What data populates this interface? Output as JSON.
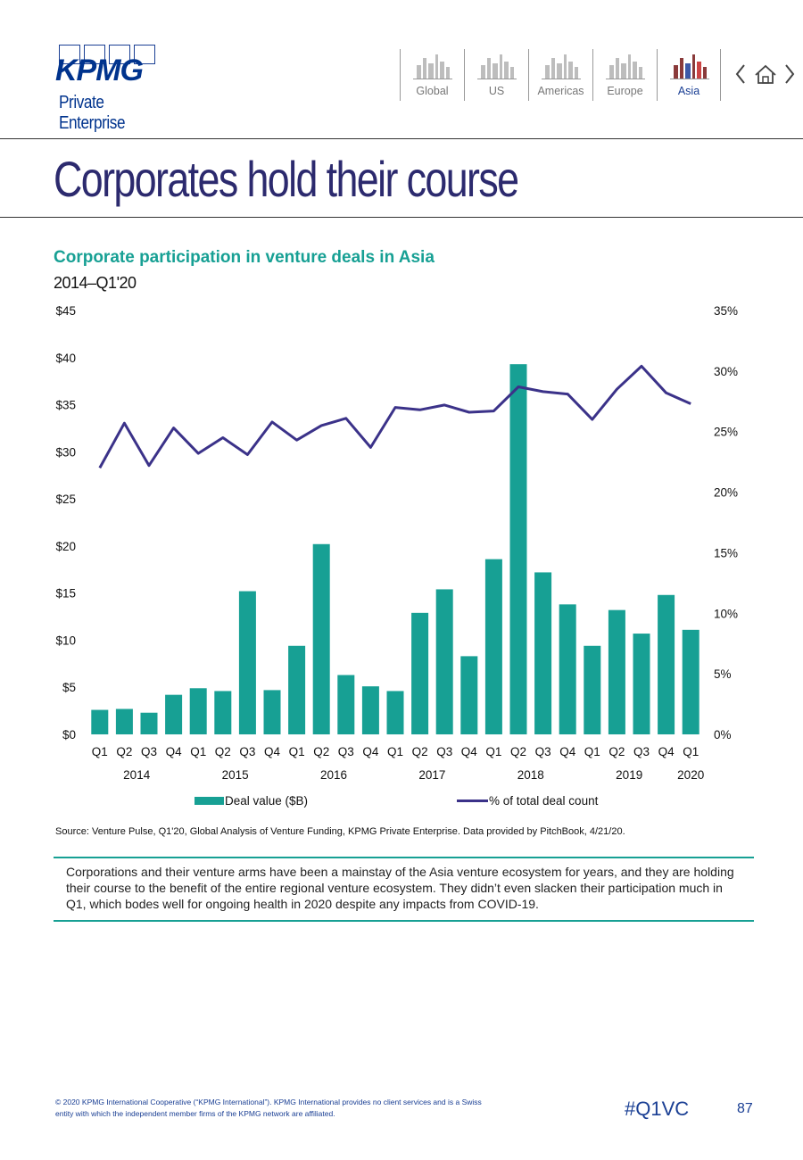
{
  "header": {
    "logo_word": "KPMG",
    "logo_sub": "Private Enterprise",
    "nav_tabs": [
      {
        "label": "Global",
        "active": false
      },
      {
        "label": "US",
        "active": false
      },
      {
        "label": "Americas",
        "active": false
      },
      {
        "label": "Europe",
        "active": false
      },
      {
        "label": "Asia",
        "active": true
      }
    ],
    "nav_icons": [
      "chevron-left-icon",
      "home-icon",
      "chevron-right-icon"
    ]
  },
  "page": {
    "title": "Corporates hold their course",
    "source": "Source: Venture Pulse, Q1'20, Global Analysis of Venture Funding, KPMG Private Enterprise. Data provided by PitchBook, 4/21/20.",
    "callout": "Corporations and their venture arms have been a mainstay of the Asia venture ecosystem for years, and they are holding their course to the benefit of the entire regional venture ecosystem. They didn’t even slacken their participation much in Q1, which bodes well for ongoing health in 2020 despite any impacts from COVID-19.",
    "footer_legal": "© 2020 KPMG International Cooperative (“KPMG International”). KPMG International provides no client services and is a Swiss entity with which the independent member firms of the KPMG network are affiliated.",
    "hashtag": "#Q1VC",
    "page_number": "87"
  },
  "chart_data": {
    "type": "bar",
    "title": "Corporate participation in venture deals in Asia",
    "subtitle": "2014–Q1'20",
    "categories": [
      "Q1",
      "Q2",
      "Q3",
      "Q4",
      "Q1",
      "Q2",
      "Q3",
      "Q4",
      "Q1",
      "Q2",
      "Q3",
      "Q4",
      "Q1",
      "Q2",
      "Q3",
      "Q4",
      "Q1",
      "Q2",
      "Q3",
      "Q4",
      "Q1",
      "Q2",
      "Q3",
      "Q4",
      "Q1"
    ],
    "year_groups": [
      {
        "label": "2014",
        "start": 0,
        "end": 3
      },
      {
        "label": "2015",
        "start": 4,
        "end": 7
      },
      {
        "label": "2016",
        "start": 8,
        "end": 11
      },
      {
        "label": "2017",
        "start": 12,
        "end": 15
      },
      {
        "label": "2018",
        "start": 16,
        "end": 19
      },
      {
        "label": "2019",
        "start": 20,
        "end": 23
      },
      {
        "label": "2020",
        "start": 24,
        "end": 24
      }
    ],
    "series": [
      {
        "name": "Deal value ($B)",
        "kind": "bar",
        "axis": "left",
        "color": "#17a094",
        "values": [
          2.6,
          2.7,
          2.3,
          4.2,
          4.9,
          4.6,
          15.2,
          4.7,
          9.4,
          20.2,
          6.3,
          5.1,
          4.6,
          12.9,
          15.4,
          8.3,
          18.6,
          39.3,
          17.2,
          13.8,
          9.4,
          13.2,
          10.7,
          14.8,
          11.1
        ]
      },
      {
        "name": "% of total deal count",
        "kind": "line",
        "axis": "right",
        "color": "#3b3289",
        "values": [
          22.0,
          25.7,
          22.2,
          25.3,
          23.2,
          24.5,
          23.1,
          25.8,
          24.3,
          25.5,
          26.1,
          23.7,
          27.0,
          26.8,
          27.2,
          26.6,
          26.7,
          28.7,
          28.3,
          28.1,
          26.0,
          28.5,
          30.4,
          28.2,
          27.3
        ]
      }
    ],
    "left_axis": {
      "ticks": [
        "$0",
        "$5",
        "$10",
        "$15",
        "$20",
        "$25",
        "$30",
        "$35",
        "$40",
        "$45"
      ],
      "min": 0,
      "max": 45,
      "step": 5
    },
    "right_axis": {
      "ticks": [
        "0%",
        "5%",
        "10%",
        "15%",
        "20%",
        "25%",
        "30%",
        "35%"
      ],
      "min": 0,
      "max": 35,
      "step": 5
    },
    "legend_position": "bottom",
    "grid": false
  }
}
